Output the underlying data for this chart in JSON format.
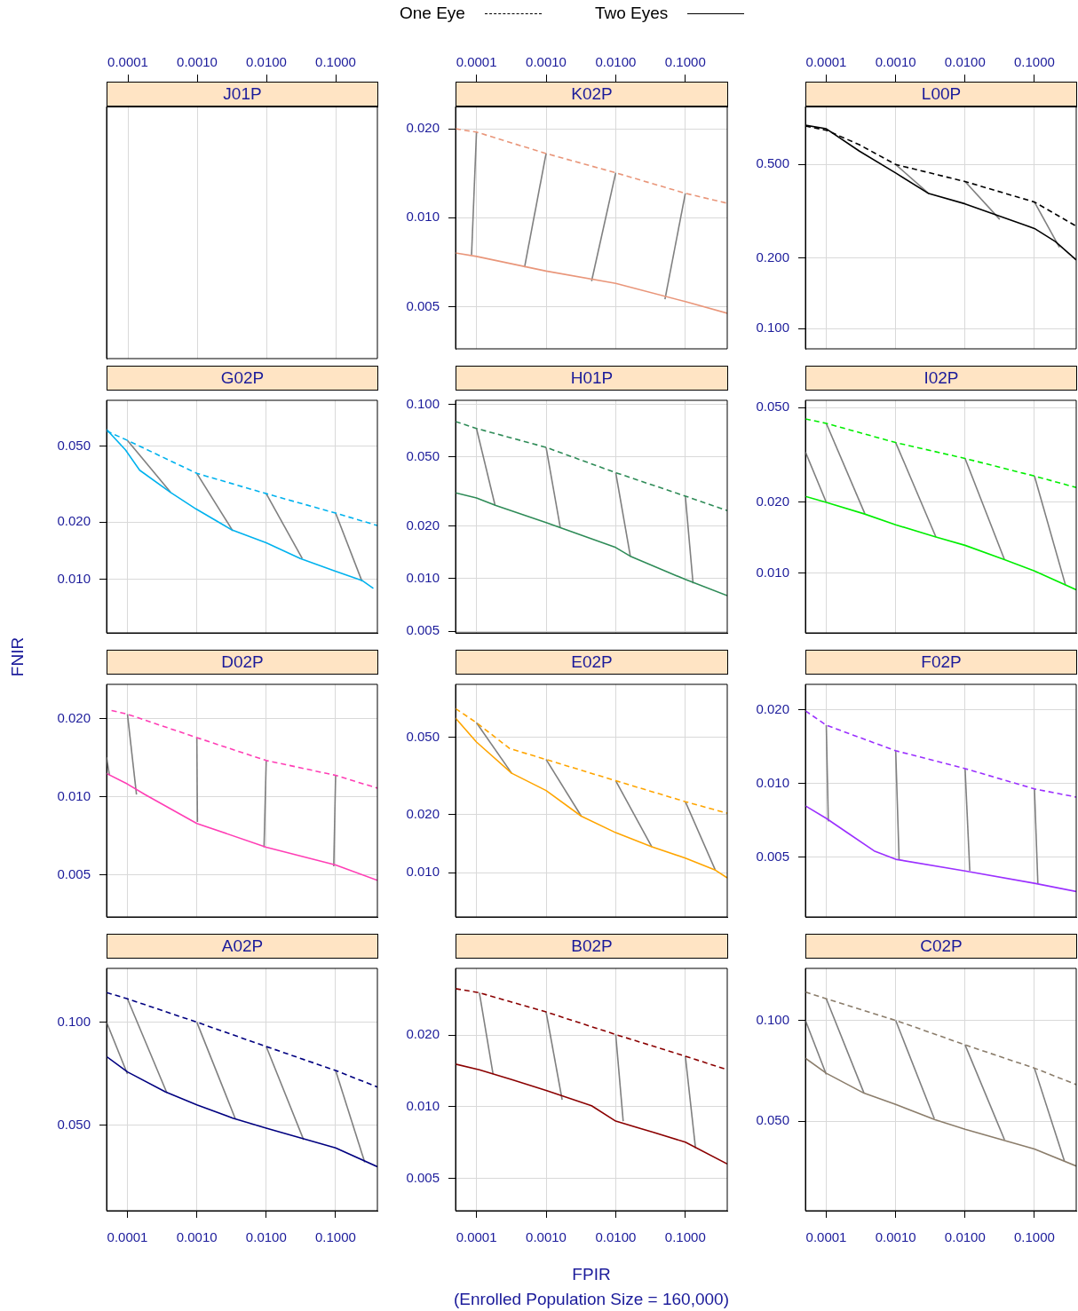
{
  "chart_data": [
    {
      "type": "other",
      "title": "J01P",
      "annotations": [
        "0.0001",
        "0.0010",
        "0.0100",
        "0.1000"
      ]
    },
    {
      "type": "line",
      "title": "K02P",
      "xlim": [
        5e-05,
        0.4
      ],
      "xticks": [
        {
          "value": 0.0001,
          "label": "0.0001"
        },
        {
          "value": 0.001,
          "label": "0.0010"
        },
        {
          "value": 0.01,
          "label": "0.0100"
        },
        {
          "value": 0.1,
          "label": "0.1000"
        }
      ],
      "ylim": [
        0.0036,
        0.0238
      ],
      "yticks": [
        {
          "value": 0.005,
          "label": "0.005"
        },
        {
          "value": 0.01,
          "label": "0.010"
        },
        {
          "value": 0.02,
          "label": "0.020"
        }
      ],
      "log": "xy",
      "grid": true,
      "marker": "none",
      "series": [
        {
          "color": "#e9967a",
          "line_style": "dashed",
          "x": [
            5e-05,
            0.0001,
            0.001,
            0.01,
            0.1,
            0.4
          ],
          "values": [
            0.02,
            0.0195,
            0.0165,
            0.0142,
            0.0121,
            0.0112
          ]
        },
        {
          "color": "#e9967a",
          "line_style": "solid",
          "x": [
            5e-05,
            0.0001,
            0.001,
            0.01,
            0.1,
            0.4
          ],
          "values": [
            0.0076,
            0.0074,
            0.0066,
            0.006,
            0.0052,
            0.00475
          ]
        },
        {
          "color": "#808080",
          "line_style": "solid",
          "x": [
            0.0001,
            8.5e-05
          ],
          "values": [
            0.0195,
            0.0075
          ]
        },
        {
          "color": "#808080",
          "line_style": "solid",
          "x": [
            0.001,
            0.00049
          ],
          "values": [
            0.0165,
            0.0068
          ]
        },
        {
          "color": "#808080",
          "line_style": "solid",
          "x": [
            0.01,
            0.0045
          ],
          "values": [
            0.0142,
            0.0061
          ]
        },
        {
          "color": "#808080",
          "line_style": "solid",
          "x": [
            0.1,
            0.051
          ],
          "values": [
            0.0121,
            0.0053
          ]
        }
      ]
    },
    {
      "type": "line",
      "title": "L00P",
      "xlim": [
        5e-05,
        0.4
      ],
      "xticks": [
        {
          "value": 0.0001,
          "label": "0.0001"
        },
        {
          "value": 0.001,
          "label": "0.0010"
        },
        {
          "value": 0.01,
          "label": "0.0100"
        },
        {
          "value": 0.1,
          "label": "0.1000"
        }
      ],
      "ylim": [
        0.082,
        0.883
      ],
      "yticks": [
        {
          "value": 0.1,
          "label": "0.100"
        },
        {
          "value": 0.2,
          "label": "0.200"
        },
        {
          "value": 0.5,
          "label": "0.500"
        }
      ],
      "log": "xy",
      "grid": true,
      "marker": "none",
      "legend": "top",
      "series": [
        {
          "name": "One Eye",
          "color": "#000000",
          "line_style": "dashed",
          "x": [
            5e-05,
            0.0001,
            0.0003,
            0.001,
            0.01,
            0.1,
            0.4
          ],
          "values": [
            0.729,
            0.7,
            0.607,
            0.5,
            0.423,
            0.346,
            0.273
          ]
        },
        {
          "name": "Two Eyes",
          "color": "#000000",
          "line_style": "solid",
          "x": [
            5e-05,
            0.0001,
            0.0003,
            0.001,
            0.003,
            0.01,
            0.1,
            0.2,
            0.4
          ],
          "values": [
            0.735,
            0.71,
            0.57,
            0.46,
            0.376,
            0.34,
            0.267,
            0.235,
            0.196
          ]
        },
        {
          "color": "#808080",
          "line_style": "solid",
          "x": [
            0.001,
            0.003
          ],
          "values": [
            0.5,
            0.376
          ]
        },
        {
          "color": "#808080",
          "line_style": "solid",
          "x": [
            0.01,
            0.0316
          ],
          "values": [
            0.423,
            0.292
          ]
        },
        {
          "color": "#808080",
          "line_style": "solid",
          "x": [
            0.1,
            0.229
          ],
          "values": [
            0.346,
            0.222
          ]
        }
      ]
    },
    {
      "type": "line",
      "title": "G02P",
      "xlim": [
        5e-05,
        0.4
      ],
      "xticks": [
        {
          "value": 0.0001,
          "label": null
        },
        {
          "value": 0.001,
          "label": null
        },
        {
          "value": 0.01,
          "label": null
        },
        {
          "value": 0.1,
          "label": null
        }
      ],
      "ylim": [
        0.00526,
        0.0869
      ],
      "yticks": [
        {
          "value": 0.01,
          "label": "0.010"
        },
        {
          "value": 0.02,
          "label": "0.020"
        },
        {
          "value": 0.05,
          "label": "0.050"
        }
      ],
      "log": "xy",
      "grid": true,
      "marker": "none",
      "tick_labels": "y",
      "series": [
        {
          "color": "#00b2ee",
          "line_style": "dashed",
          "x": [
            5e-05,
            0.0001,
            0.001,
            0.01,
            0.1,
            0.4
          ],
          "values": [
            0.06,
            0.0536,
            0.036,
            0.0282,
            0.0223,
            0.0192
          ]
        },
        {
          "color": "#00b2ee",
          "line_style": "solid",
          "x": [
            5e-05,
            9.4e-05,
            0.00015,
            0.00042,
            0.00098,
            0.0032,
            0.01,
            0.031,
            0.097,
            0.24,
            0.35
          ],
          "values": [
            0.0612,
            0.0477,
            0.0374,
            0.0286,
            0.0234,
            0.0182,
            0.0156,
            0.0129,
            0.0111,
            0.0099,
            0.009
          ]
        },
        {
          "color": "#808080",
          "line_style": "solid",
          "x": [
            0.0001,
            0.00042
          ],
          "values": [
            0.0536,
            0.0286
          ]
        },
        {
          "color": "#808080",
          "line_style": "solid",
          "x": [
            0.001,
            0.0033
          ],
          "values": [
            0.036,
            0.018
          ]
        },
        {
          "color": "#808080",
          "line_style": "solid",
          "x": [
            0.01,
            0.033
          ],
          "values": [
            0.0282,
            0.0129
          ]
        },
        {
          "color": "#808080",
          "line_style": "solid",
          "x": [
            0.1,
            0.24
          ],
          "values": [
            0.0223,
            0.0098
          ]
        }
      ]
    },
    {
      "type": "line",
      "title": "H01P",
      "xlim": [
        5e-05,
        0.4
      ],
      "xticks": [
        {
          "value": 0.0001,
          "label": null
        },
        {
          "value": 0.001,
          "label": null
        },
        {
          "value": 0.01,
          "label": null
        },
        {
          "value": 0.1,
          "label": null
        }
      ],
      "ylim": [
        0.00489,
        0.1056
      ],
      "yticks": [
        {
          "value": 0.005,
          "label": "0.005"
        },
        {
          "value": 0.01,
          "label": "0.010"
        },
        {
          "value": 0.02,
          "label": "0.020"
        },
        {
          "value": 0.05,
          "label": "0.050"
        },
        {
          "value": 0.1,
          "label": "0.100"
        }
      ],
      "log": "xy",
      "grid": true,
      "marker": "none",
      "tick_labels": "y",
      "series": [
        {
          "color": "#2e8b57",
          "line_style": "dashed",
          "x": [
            5e-05,
            0.0001,
            0.001,
            0.01,
            0.1,
            0.4
          ],
          "values": [
            0.0798,
            0.0728,
            0.0567,
            0.0406,
            0.0298,
            0.0246
          ]
        },
        {
          "color": "#2e8b57",
          "line_style": "solid",
          "x": [
            5e-05,
            0.0001,
            0.00019,
            0.001,
            0.01,
            0.016,
            0.1,
            0.4
          ],
          "values": [
            0.0311,
            0.0291,
            0.0263,
            0.021,
            0.0151,
            0.0135,
            0.0099,
            0.008
          ]
        },
        {
          "color": "#808080",
          "line_style": "solid",
          "x": [
            0.0001,
            0.000185
          ],
          "values": [
            0.0728,
            0.0263
          ]
        },
        {
          "color": "#808080",
          "line_style": "solid",
          "x": [
            0.001,
            0.0016
          ],
          "values": [
            0.0567,
            0.0196
          ]
        },
        {
          "color": "#808080",
          "line_style": "solid",
          "x": [
            0.01,
            0.0162
          ],
          "values": [
            0.0406,
            0.0135
          ]
        },
        {
          "color": "#808080",
          "line_style": "solid",
          "x": [
            0.1,
            0.129
          ],
          "values": [
            0.0298,
            0.0094
          ]
        }
      ]
    },
    {
      "type": "line",
      "title": "I02P",
      "xlim": [
        5e-05,
        0.4
      ],
      "xticks": [
        {
          "value": 0.0001,
          "label": null
        },
        {
          "value": 0.001,
          "label": null
        },
        {
          "value": 0.01,
          "label": null
        },
        {
          "value": 0.1,
          "label": null
        }
      ],
      "ylim": [
        0.00559,
        0.0537
      ],
      "yticks": [
        {
          "value": 0.01,
          "label": "0.010"
        },
        {
          "value": 0.02,
          "label": "0.020"
        },
        {
          "value": 0.05,
          "label": "0.050"
        }
      ],
      "log": "xy",
      "grid": true,
      "marker": "none",
      "tick_labels": "y",
      "series": [
        {
          "color": "#00ee00",
          "line_style": "dashed",
          "x": [
            5e-05,
            0.0001,
            0.001,
            0.01,
            0.1,
            0.4
          ],
          "values": [
            0.0448,
            0.0429,
            0.0356,
            0.0305,
            0.0257,
            0.023
          ]
        },
        {
          "color": "#00ee00",
          "line_style": "solid",
          "x": [
            5e-05,
            0.0001,
            0.00035,
            0.001,
            0.0038,
            0.01,
            0.037,
            0.1,
            0.4
          ],
          "values": [
            0.0211,
            0.0199,
            0.0178,
            0.016,
            0.0142,
            0.0131,
            0.0114,
            0.0102,
            0.0085
          ]
        },
        {
          "color": "#808080",
          "line_style": "solid",
          "x": [
            5e-05,
            0.0001
          ],
          "values": [
            0.0325,
            0.0199
          ]
        },
        {
          "color": "#808080",
          "line_style": "solid",
          "x": [
            0.0001,
            0.00036
          ],
          "values": [
            0.0429,
            0.0178
          ]
        },
        {
          "color": "#808080",
          "line_style": "solid",
          "x": [
            0.001,
            0.0038
          ],
          "values": [
            0.0356,
            0.0142
          ]
        },
        {
          "color": "#808080",
          "line_style": "solid",
          "x": [
            0.01,
            0.037
          ],
          "values": [
            0.0305,
            0.0114
          ]
        },
        {
          "color": "#808080",
          "line_style": "solid",
          "x": [
            0.1,
            0.28
          ],
          "values": [
            0.0257,
            0.0089
          ]
        }
      ]
    },
    {
      "type": "line",
      "title": "D02P",
      "ylabel": "FNIR",
      "xlim": [
        5e-05,
        0.4
      ],
      "xticks": [
        {
          "value": 0.0001,
          "label": null
        },
        {
          "value": 0.001,
          "label": null
        },
        {
          "value": 0.01,
          "label": null
        },
        {
          "value": 0.1,
          "label": null
        }
      ],
      "ylim": [
        0.00345,
        0.0271
      ],
      "yticks": [
        {
          "value": 0.005,
          "label": "0.005"
        },
        {
          "value": 0.01,
          "label": "0.010"
        },
        {
          "value": 0.02,
          "label": "0.020"
        }
      ],
      "log": "xy",
      "grid": true,
      "marker": "none",
      "tick_labels": "y",
      "series": [
        {
          "color": "#ff3eb5",
          "line_style": "dashed",
          "x": [
            5.9e-05,
            0.0001,
            0.001,
            0.01,
            0.1,
            0.4
          ],
          "values": [
            0.0215,
            0.0208,
            0.0169,
            0.0138,
            0.0121,
            0.0108
          ]
        },
        {
          "color": "#ff3eb5",
          "line_style": "solid",
          "x": [
            5e-05,
            0.0001,
            0.00018,
            0.001,
            0.01,
            0.1,
            0.4
          ],
          "values": [
            0.0123,
            0.0112,
            0.0102,
            0.0079,
            0.0064,
            0.00547,
            0.00477
          ]
        },
        {
          "color": "#808080",
          "line_style": "solid",
          "x": [
            5e-05,
            5.5e-05
          ],
          "values": [
            0.0142,
            0.0121
          ]
        },
        {
          "color": "#808080",
          "line_style": "solid",
          "x": [
            0.0001,
            0.000135
          ],
          "values": [
            0.0208,
            0.0102
          ]
        },
        {
          "color": "#808080",
          "line_style": "solid",
          "x": [
            0.001,
            0.00102
          ],
          "values": [
            0.0169,
            0.008
          ]
        },
        {
          "color": "#808080",
          "line_style": "solid",
          "x": [
            0.01,
            0.0093
          ],
          "values": [
            0.0138,
            0.0064
          ]
        },
        {
          "color": "#808080",
          "line_style": "solid",
          "x": [
            0.1,
            0.094
          ],
          "values": [
            0.0121,
            0.0054
          ]
        }
      ]
    },
    {
      "type": "line",
      "title": "E02P",
      "xlim": [
        5e-05,
        0.4
      ],
      "xticks": [
        {
          "value": 0.0001,
          "label": null
        },
        {
          "value": 0.001,
          "label": null
        },
        {
          "value": 0.01,
          "label": null
        },
        {
          "value": 0.1,
          "label": null
        }
      ],
      "ylim": [
        0.0059,
        0.0943
      ],
      "yticks": [
        {
          "value": 0.01,
          "label": "0.010"
        },
        {
          "value": 0.02,
          "label": "0.020"
        },
        {
          "value": 0.05,
          "label": "0.050"
        }
      ],
      "log": "xy",
      "grid": true,
      "marker": "none",
      "tick_labels": "y",
      "series": [
        {
          "color": "#ffa500",
          "line_style": "dashed",
          "x": [
            5e-05,
            0.0001,
            0.0003,
            0.001,
            0.01,
            0.1,
            0.4
          ],
          "values": [
            0.0706,
            0.0597,
            0.0439,
            0.0385,
            0.0299,
            0.0233,
            0.0203
          ]
        },
        {
          "color": "#ffa500",
          "line_style": "solid",
          "x": [
            5e-05,
            0.0001,
            0.00032,
            0.001,
            0.0032,
            0.01,
            0.033,
            0.1,
            0.27,
            0.4
          ],
          "values": [
            0.063,
            0.0474,
            0.0327,
            0.0266,
            0.0196,
            0.0161,
            0.0136,
            0.0119,
            0.0103,
            0.0094
          ]
        },
        {
          "color": "#808080",
          "line_style": "solid",
          "x": [
            0.0001,
            0.00032
          ],
          "values": [
            0.0597,
            0.0327
          ]
        },
        {
          "color": "#808080",
          "line_style": "solid",
          "x": [
            0.001,
            0.0032
          ],
          "values": [
            0.0385,
            0.0196
          ]
        },
        {
          "color": "#808080",
          "line_style": "solid",
          "x": [
            0.01,
            0.033
          ],
          "values": [
            0.0299,
            0.0136
          ]
        },
        {
          "color": "#808080",
          "line_style": "solid",
          "x": [
            0.1,
            0.27
          ],
          "values": [
            0.0233,
            0.0103
          ]
        }
      ]
    },
    {
      "type": "line",
      "title": "F02P",
      "xlim": [
        5e-05,
        0.4
      ],
      "xticks": [
        {
          "value": 0.0001,
          "label": null
        },
        {
          "value": 0.001,
          "label": null
        },
        {
          "value": 0.01,
          "label": null
        },
        {
          "value": 0.1,
          "label": null
        }
      ],
      "ylim": [
        0.00285,
        0.0254
      ],
      "yticks": [
        {
          "value": 0.005,
          "label": "0.005"
        },
        {
          "value": 0.01,
          "label": "0.010"
        },
        {
          "value": 0.02,
          "label": "0.020"
        }
      ],
      "log": "xy",
      "grid": true,
      "marker": "none",
      "tick_labels": "y",
      "series": [
        {
          "color": "#9b30ff",
          "line_style": "dashed",
          "x": [
            5e-05,
            0.0001,
            0.001,
            0.01,
            0.1,
            0.4
          ],
          "values": [
            0.0198,
            0.0173,
            0.0136,
            0.0115,
            0.0095,
            0.0088
          ]
        },
        {
          "color": "#9b30ff",
          "line_style": "solid",
          "x": [
            5e-05,
            0.0001,
            0.0002,
            0.00049,
            0.001,
            0.01,
            0.1,
            0.4
          ],
          "values": [
            0.0081,
            0.0072,
            0.0063,
            0.0053,
            0.0049,
            0.00439,
            0.00391,
            0.00362
          ]
        },
        {
          "color": "#808080",
          "line_style": "solid",
          "x": [
            0.0001,
            0.000107
          ],
          "values": [
            0.0173,
            0.007
          ]
        },
        {
          "color": "#808080",
          "line_style": "solid",
          "x": [
            0.001,
            0.00112
          ],
          "values": [
            0.0136,
            0.0049
          ]
        },
        {
          "color": "#808080",
          "line_style": "solid",
          "x": [
            0.01,
            0.0117
          ],
          "values": [
            0.0115,
            0.0044
          ]
        },
        {
          "color": "#808080",
          "line_style": "solid",
          "x": [
            0.1,
            0.112
          ],
          "values": [
            0.0095,
            0.0039
          ]
        }
      ]
    },
    {
      "type": "line",
      "title": "A02P",
      "xlim": [
        5e-05,
        0.4
      ],
      "xticks": [
        {
          "value": 0.0001,
          "label": "0.0001"
        },
        {
          "value": 0.001,
          "label": "0.0010"
        },
        {
          "value": 0.01,
          "label": "0.0100"
        },
        {
          "value": 0.1,
          "label": "0.1000"
        }
      ],
      "ylim": [
        0.0282,
        0.1435
      ],
      "yticks": [
        {
          "value": 0.05,
          "label": "0.050"
        },
        {
          "value": 0.1,
          "label": "0.100"
        }
      ],
      "log": "xy",
      "grid": true,
      "marker": "none",
      "series": [
        {
          "color": "#000080",
          "line_style": "dashed",
          "x": [
            5e-05,
            0.0001,
            0.001,
            0.01,
            0.1,
            0.4
          ],
          "values": [
            0.122,
            0.117,
            0.1,
            0.0849,
            0.0723,
            0.0647
          ]
        },
        {
          "color": "#000080",
          "line_style": "solid",
          "x": [
            5e-05,
            0.0001,
            0.00035,
            0.001,
            0.0033,
            0.01,
            0.1,
            0.4
          ],
          "values": [
            0.0794,
            0.0716,
            0.0627,
            0.0574,
            0.0525,
            0.0491,
            0.043,
            0.0379
          ]
        },
        {
          "color": "#808080",
          "line_style": "solid",
          "x": [
            5e-05,
            0.0001
          ],
          "values": [
            0.1,
            0.0706
          ]
        },
        {
          "color": "#808080",
          "line_style": "solid",
          "x": [
            0.0001,
            0.00037
          ],
          "values": [
            0.117,
            0.0622
          ]
        },
        {
          "color": "#808080",
          "line_style": "solid",
          "x": [
            0.001,
            0.0036
          ],
          "values": [
            0.1,
            0.0522
          ]
        },
        {
          "color": "#808080",
          "line_style": "solid",
          "x": [
            0.01,
            0.0346
          ],
          "values": [
            0.0849,
            0.0454
          ]
        },
        {
          "color": "#808080",
          "line_style": "solid",
          "x": [
            0.1,
            0.263
          ],
          "values": [
            0.0723,
            0.039
          ]
        }
      ]
    },
    {
      "type": "line",
      "title": "B02P",
      "xlabel": "FPIR\n(Enrolled Population Size = 160,000)",
      "xlim": [
        5e-05,
        0.4
      ],
      "xticks": [
        {
          "value": 0.0001,
          "label": "0.0001"
        },
        {
          "value": 0.001,
          "label": "0.0010"
        },
        {
          "value": 0.01,
          "label": "0.0100"
        },
        {
          "value": 0.1,
          "label": "0.1000"
        }
      ],
      "ylim": [
        0.00366,
        0.0381
      ],
      "yticks": [
        {
          "value": 0.005,
          "label": "0.005"
        },
        {
          "value": 0.01,
          "label": "0.010"
        },
        {
          "value": 0.02,
          "label": "0.020"
        }
      ],
      "log": "xy",
      "grid": true,
      "marker": "none",
      "series": [
        {
          "color": "#8b0000",
          "line_style": "dashed",
          "x": [
            5e-05,
            0.00011,
            0.001,
            0.01,
            0.1,
            0.4
          ],
          "values": [
            0.0313,
            0.0301,
            0.025,
            0.0201,
            0.0163,
            0.0143
          ]
        },
        {
          "color": "#8b0000",
          "line_style": "solid",
          "x": [
            5e-05,
            0.00011,
            0.00032,
            0.001,
            0.0045,
            0.01,
            0.035,
            0.1,
            0.4
          ],
          "values": [
            0.0151,
            0.0143,
            0.013,
            0.0117,
            0.0101,
            0.0087,
            0.0078,
            0.0071,
            0.00575
          ]
        },
        {
          "color": "#808080",
          "line_style": "solid",
          "x": [
            0.00011,
            0.000173
          ],
          "values": [
            0.0301,
            0.0137
          ]
        },
        {
          "color": "#808080",
          "line_style": "solid",
          "x": [
            0.001,
            0.0017
          ],
          "values": [
            0.025,
            0.0107
          ]
        },
        {
          "color": "#808080",
          "line_style": "solid",
          "x": [
            0.01,
            0.0128
          ],
          "values": [
            0.0201,
            0.0087
          ]
        },
        {
          "color": "#808080",
          "line_style": "solid",
          "x": [
            0.1,
            0.14
          ],
          "values": [
            0.0163,
            0.0067
          ]
        }
      ]
    },
    {
      "type": "line",
      "title": "C02P",
      "xlim": [
        5e-05,
        0.4
      ],
      "xticks": [
        {
          "value": 0.0001,
          "label": "0.0001"
        },
        {
          "value": 0.001,
          "label": "0.0010"
        },
        {
          "value": 0.01,
          "label": "0.0100"
        },
        {
          "value": 0.1,
          "label": "0.1000"
        }
      ],
      "ylim": [
        0.027,
        0.143
      ],
      "yticks": [
        {
          "value": 0.05,
          "label": "0.050"
        },
        {
          "value": 0.1,
          "label": "0.100"
        }
      ],
      "log": "xy",
      "grid": true,
      "marker": "none",
      "series": [
        {
          "color": "#8b7d6b",
          "line_style": "dashed",
          "x": [
            5e-05,
            0.0001,
            0.001,
            0.01,
            0.1,
            0.4
          ],
          "values": [
            0.1216,
            0.116,
            0.1,
            0.0845,
            0.072,
            0.0643
          ]
        },
        {
          "color": "#8b7d6b",
          "line_style": "solid",
          "x": [
            5e-05,
            0.0001,
            0.00035,
            0.001,
            0.0037,
            0.01,
            0.1,
            0.4
          ],
          "values": [
            0.0771,
            0.0695,
            0.0606,
            0.0561,
            0.0505,
            0.0473,
            0.0413,
            0.0367
          ]
        },
        {
          "color": "#808080",
          "line_style": "solid",
          "x": [
            5e-05,
            0.0001
          ],
          "values": [
            0.1,
            0.0689
          ]
        },
        {
          "color": "#808080",
          "line_style": "solid",
          "x": [
            0.0001,
            0.00035
          ],
          "values": [
            0.116,
            0.0606
          ]
        },
        {
          "color": "#808080",
          "line_style": "solid",
          "x": [
            0.001,
            0.0036
          ],
          "values": [
            0.1,
            0.0509
          ]
        },
        {
          "color": "#808080",
          "line_style": "solid",
          "x": [
            0.01,
            0.037
          ],
          "values": [
            0.0845,
            0.044
          ]
        },
        {
          "color": "#808080",
          "line_style": "solid",
          "x": [
            0.1,
            0.27
          ],
          "values": [
            0.072,
            0.038
          ]
        }
      ]
    }
  ]
}
